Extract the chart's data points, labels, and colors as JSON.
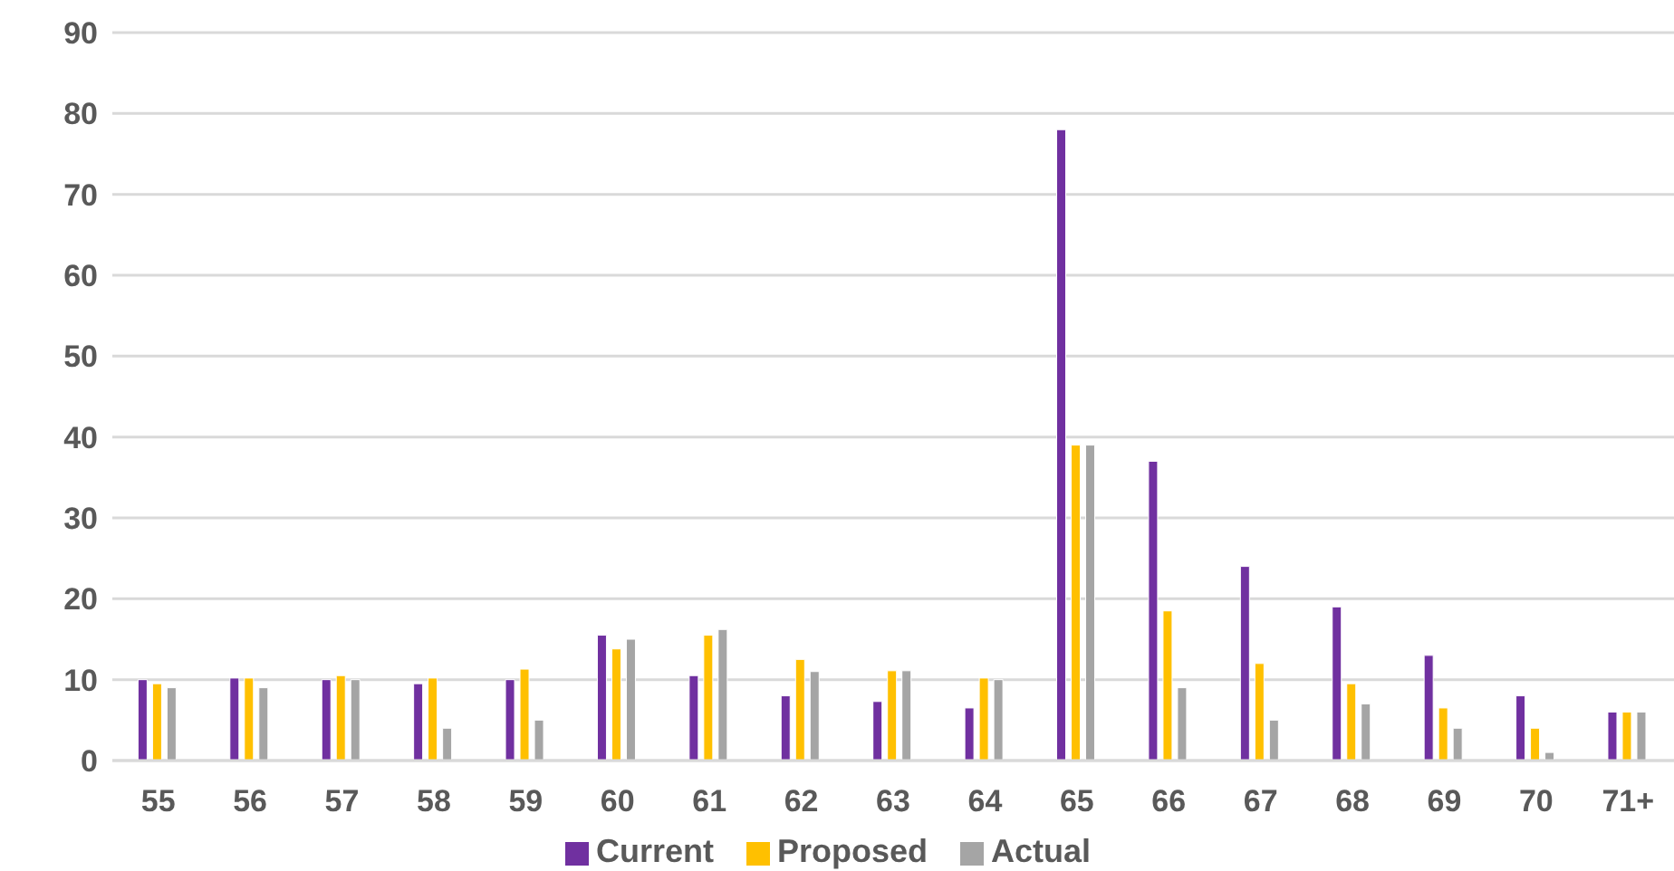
{
  "chart_data": {
    "type": "bar",
    "categories": [
      "55",
      "56",
      "57",
      "58",
      "59",
      "60",
      "61",
      "62",
      "63",
      "64",
      "65",
      "66",
      "67",
      "68",
      "69",
      "70",
      "71+"
    ],
    "series": [
      {
        "name": "Current",
        "color": "#7030a0",
        "values": [
          10,
          10.2,
          10,
          9.5,
          10,
          15.5,
          10.5,
          8,
          7.3,
          6.5,
          78,
          37,
          24,
          19,
          13,
          8,
          6
        ]
      },
      {
        "name": "Proposed",
        "color": "#ffc000",
        "values": [
          9.5,
          10.2,
          10.5,
          10.2,
          11.3,
          13.8,
          15.5,
          12.5,
          11.1,
          10.2,
          39,
          18.5,
          12,
          9.5,
          6.5,
          4,
          6
        ]
      },
      {
        "name": "Actual",
        "color": "#a5a5a5",
        "values": [
          9,
          9,
          10,
          4,
          5,
          15,
          16.2,
          11,
          11.1,
          10,
          39,
          9,
          5,
          7,
          4,
          1,
          6
        ]
      }
    ],
    "ylim": [
      0,
      90
    ],
    "yticks": [
      0,
      10,
      20,
      30,
      40,
      50,
      60,
      70,
      80,
      90
    ],
    "grid": "y",
    "legend": "bottom"
  }
}
